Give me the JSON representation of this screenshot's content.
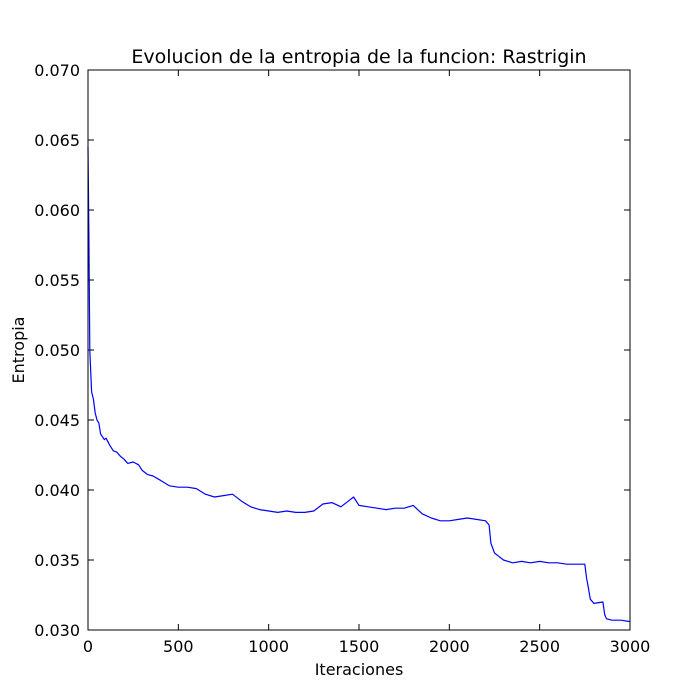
{
  "chart_data": {
    "type": "line",
    "title": "Evolucion de la entropia de la funcion: Rastrigin",
    "xlabel": "Iteraciones",
    "ylabel": "Entropia",
    "xlim": [
      0,
      3000
    ],
    "ylim": [
      0.03,
      0.07
    ],
    "xticks": [
      0,
      500,
      1000,
      1500,
      2000,
      2500,
      3000
    ],
    "xtick_labels": [
      "0",
      "500",
      "1000",
      "1500",
      "2000",
      "2500",
      "3000"
    ],
    "yticks": [
      0.03,
      0.035,
      0.04,
      0.045,
      0.05,
      0.055,
      0.06,
      0.065,
      0.07
    ],
    "ytick_labels": [
      "0.030",
      "0.035",
      "0.040",
      "0.045",
      "0.050",
      "0.055",
      "0.060",
      "0.065",
      "0.070"
    ],
    "grid": false,
    "line_color": "#0000ff",
    "series": [
      {
        "x": [
          0,
          5,
          10,
          20,
          30,
          40,
          50,
          60,
          70,
          80,
          90,
          100,
          120,
          140,
          160,
          180,
          200,
          220,
          250,
          280,
          300,
          330,
          360,
          400,
          450,
          500,
          550,
          600,
          650,
          700,
          750,
          800,
          850,
          900,
          950,
          1000,
          1050,
          1100,
          1150,
          1200,
          1250,
          1300,
          1350,
          1400,
          1450,
          1470,
          1500,
          1550,
          1600,
          1650,
          1700,
          1750,
          1800,
          1850,
          1900,
          1950,
          2000,
          2050,
          2100,
          2150,
          2200,
          2220,
          2230,
          2250,
          2270,
          2300,
          2350,
          2400,
          2450,
          2500,
          2550,
          2600,
          2650,
          2700,
          2750,
          2760,
          2770,
          2780,
          2800,
          2850,
          2860,
          2870,
          2900,
          2950,
          3000
        ],
        "y": [
          0.0645,
          0.058,
          0.05,
          0.047,
          0.0465,
          0.0455,
          0.045,
          0.0448,
          0.044,
          0.0438,
          0.0436,
          0.0437,
          0.0432,
          0.0428,
          0.0427,
          0.0424,
          0.0422,
          0.0419,
          0.042,
          0.0418,
          0.0414,
          0.0411,
          0.041,
          0.0407,
          0.0403,
          0.0402,
          0.0402,
          0.0401,
          0.0397,
          0.0395,
          0.0396,
          0.0397,
          0.0392,
          0.0388,
          0.0386,
          0.0385,
          0.0384,
          0.0385,
          0.0384,
          0.0384,
          0.0385,
          0.039,
          0.0391,
          0.0388,
          0.0393,
          0.0395,
          0.0389,
          0.0388,
          0.0387,
          0.0386,
          0.0387,
          0.0387,
          0.0389,
          0.0383,
          0.038,
          0.0378,
          0.0378,
          0.0379,
          0.038,
          0.0379,
          0.0378,
          0.0375,
          0.0362,
          0.0355,
          0.0353,
          0.035,
          0.0348,
          0.0349,
          0.0348,
          0.0349,
          0.0348,
          0.0348,
          0.0347,
          0.0347,
          0.0347,
          0.0337,
          0.033,
          0.0322,
          0.0319,
          0.032,
          0.0311,
          0.0308,
          0.0307,
          0.0307,
          0.0306
        ]
      }
    ]
  }
}
